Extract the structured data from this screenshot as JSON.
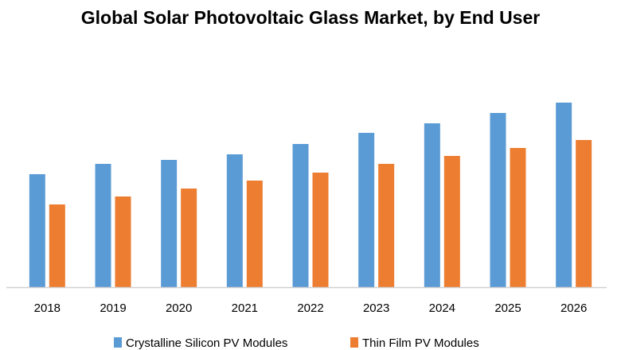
{
  "chart_data": {
    "type": "bar",
    "title": "Global Solar Photovoltaic Glass Market, by End User",
    "xlabel": "",
    "ylabel": "",
    "categories": [
      "2018",
      "2019",
      "2020",
      "2021",
      "2022",
      "2023",
      "2024",
      "2025",
      "2026"
    ],
    "series": [
      {
        "name": "Crystalline Silicon PV Modules",
        "color": "#5b9bd5",
        "values": [
          142,
          155,
          160,
          167,
          180,
          194,
          206,
          219,
          232
        ]
      },
      {
        "name": "Thin Film PV Modules",
        "color": "#ed7d31",
        "values": [
          104,
          114,
          124,
          134,
          144,
          155,
          165,
          175,
          185
        ]
      }
    ],
    "ylim": [
      0,
      240
    ],
    "y_axis_shown": false,
    "grid": false,
    "legend_position": "bottom"
  }
}
